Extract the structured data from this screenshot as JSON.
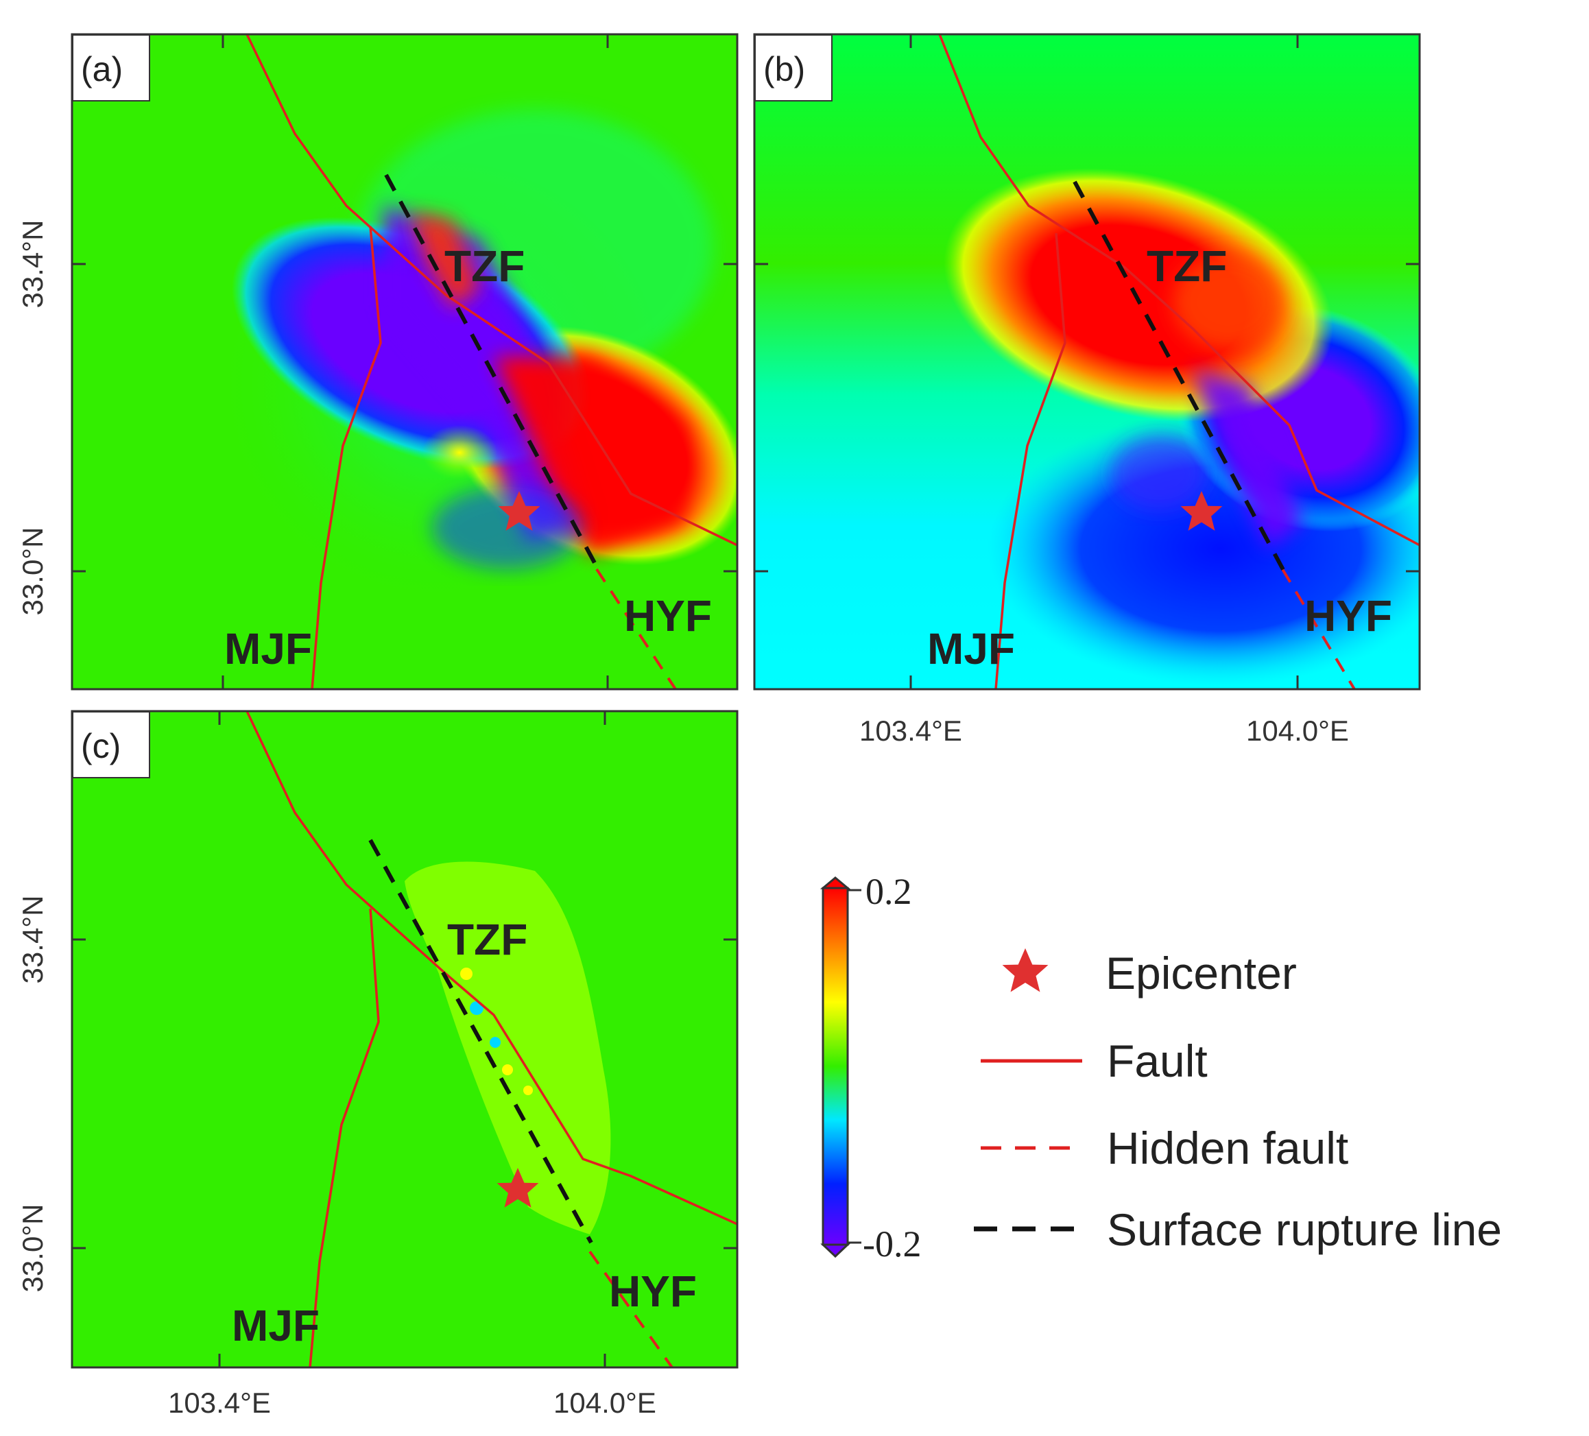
{
  "panels": [
    {
      "label": "(a)",
      "faults": {
        "tzf": "TZF",
        "hyf": "HYF",
        "mjf": "MJF"
      }
    },
    {
      "label": "(b)",
      "faults": {
        "tzf": "TZF",
        "hyf": "HYF",
        "mjf": "MJF"
      }
    },
    {
      "label": "(c)",
      "faults": {
        "tzf": "TZF",
        "hyf": "HYF",
        "mjf": "MJF"
      }
    }
  ],
  "axes": {
    "lat_ticks": [
      "33.4°N",
      "33.0°N"
    ],
    "lon_ticks": [
      "103.4°E",
      "104.0°E"
    ]
  },
  "colorbar": {
    "max_label": "0.2",
    "min_label": "-0.2",
    "max": 0.2,
    "min": -0.2,
    "colors": [
      "#6a00ff",
      "#0020ff",
      "#00e8ff",
      "#33ff00",
      "#ffff00",
      "#ff8800",
      "#ff0000"
    ]
  },
  "legend": {
    "epicenter": "Epicenter",
    "fault": "Fault",
    "hidden_fault": "Hidden fault",
    "surface_rupture": "Surface rupture line"
  },
  "colors": {
    "fault": "#e02020",
    "rupture": "#111111",
    "epicenter": "#e03030",
    "background_green": "#33ee00"
  }
}
